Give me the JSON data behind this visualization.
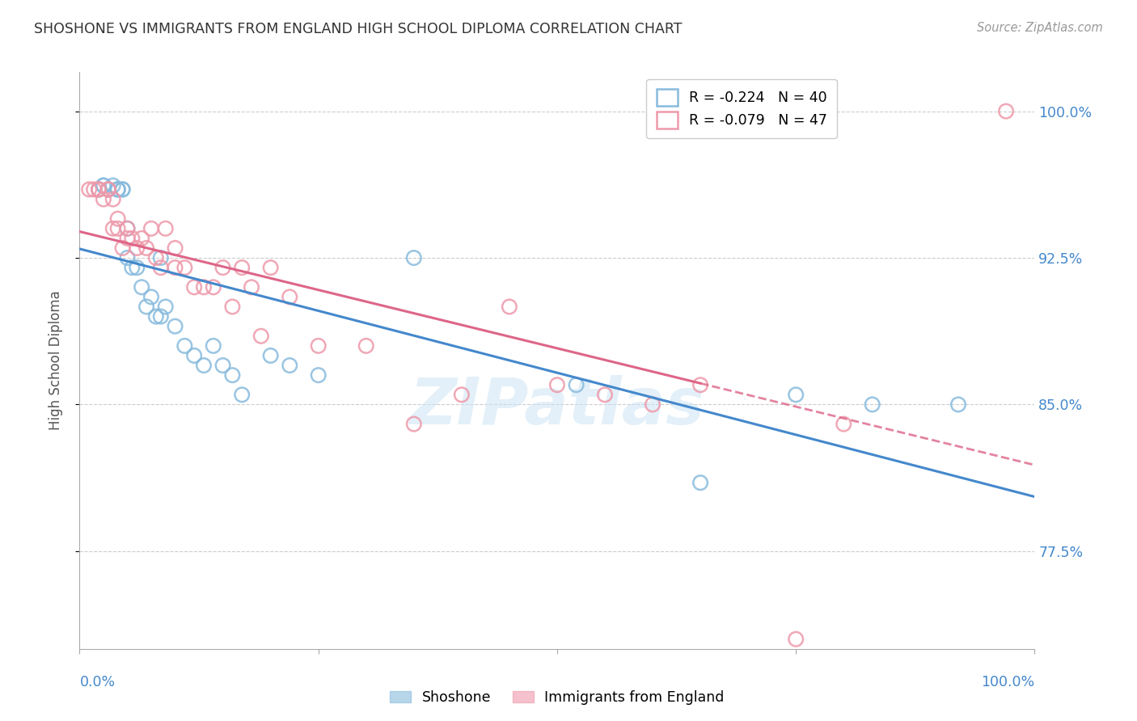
{
  "title": "SHOSHONE VS IMMIGRANTS FROM ENGLAND HIGH SCHOOL DIPLOMA CORRELATION CHART",
  "source": "Source: ZipAtlas.com",
  "ylabel": "High School Diploma",
  "ytick_labels": [
    "100.0%",
    "92.5%",
    "85.0%",
    "77.5%"
  ],
  "ytick_values": [
    1.0,
    0.925,
    0.85,
    0.775
  ],
  "xmin": 0.0,
  "xmax": 1.0,
  "ymin": 0.725,
  "ymax": 1.02,
  "legend_r_blue": "R = -0.224",
  "legend_n_blue": "N = 40",
  "legend_r_pink": "R = -0.079",
  "legend_n_pink": "N = 47",
  "color_blue": "#88bbdd",
  "color_pink": "#ee99aa",
  "color_line_blue": "#4488cc",
  "color_line_pink": "#dd6688",
  "title_color": "#333333",
  "axis_label_color": "#4488cc",
  "watermark_color": "#cce4f5",
  "shoshone_x": [
    0.02,
    0.02,
    0.025,
    0.025,
    0.03,
    0.03,
    0.035,
    0.04,
    0.04,
    0.04,
    0.045,
    0.045,
    0.05,
    0.05,
    0.055,
    0.06,
    0.065,
    0.07,
    0.075,
    0.08,
    0.085,
    0.085,
    0.09,
    0.1,
    0.11,
    0.12,
    0.13,
    0.14,
    0.15,
    0.16,
    0.17,
    0.2,
    0.22,
    0.25,
    0.35,
    0.52,
    0.65,
    0.75,
    0.83,
    0.92
  ],
  "shoshone_y": [
    0.96,
    0.96,
    0.962,
    0.962,
    0.96,
    0.96,
    0.962,
    0.96,
    0.96,
    0.96,
    0.96,
    0.96,
    0.94,
    0.925,
    0.92,
    0.92,
    0.91,
    0.9,
    0.905,
    0.895,
    0.895,
    0.925,
    0.9,
    0.89,
    0.88,
    0.875,
    0.87,
    0.88,
    0.87,
    0.865,
    0.855,
    0.875,
    0.87,
    0.865,
    0.925,
    0.86,
    0.81,
    0.855,
    0.85,
    0.85
  ],
  "england_x": [
    0.01,
    0.015,
    0.02,
    0.02,
    0.025,
    0.03,
    0.03,
    0.035,
    0.035,
    0.04,
    0.04,
    0.045,
    0.05,
    0.05,
    0.055,
    0.06,
    0.065,
    0.07,
    0.075,
    0.08,
    0.085,
    0.09,
    0.1,
    0.1,
    0.11,
    0.12,
    0.13,
    0.14,
    0.15,
    0.16,
    0.17,
    0.18,
    0.19,
    0.2,
    0.22,
    0.25,
    0.3,
    0.35,
    0.4,
    0.45,
    0.5,
    0.55,
    0.6,
    0.65,
    0.75,
    0.8,
    0.97
  ],
  "england_y": [
    0.96,
    0.96,
    0.96,
    0.96,
    0.955,
    0.96,
    0.96,
    0.955,
    0.94,
    0.945,
    0.94,
    0.93,
    0.935,
    0.94,
    0.935,
    0.93,
    0.935,
    0.93,
    0.94,
    0.925,
    0.92,
    0.94,
    0.93,
    0.92,
    0.92,
    0.91,
    0.91,
    0.91,
    0.92,
    0.9,
    0.92,
    0.91,
    0.885,
    0.92,
    0.905,
    0.88,
    0.88,
    0.84,
    0.855,
    0.9,
    0.86,
    0.855,
    0.85,
    0.86,
    0.73,
    0.84,
    1.0
  ]
}
